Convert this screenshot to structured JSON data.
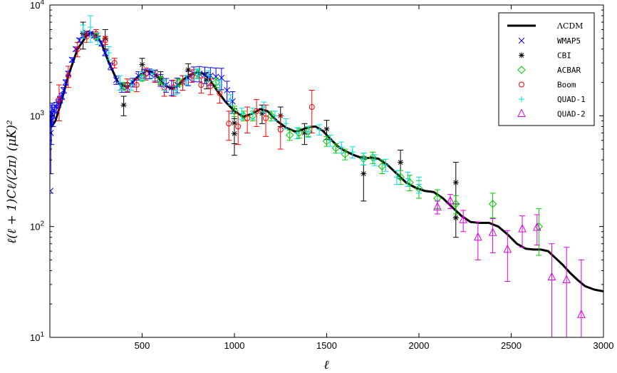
{
  "chart_data": {
    "type": "scatter",
    "title": "",
    "xlabel": "ℓ",
    "ylabel": "ℓ(ℓ + 1)Cℓ/(2π)  (μK)²",
    "xlim": [
      0,
      3000
    ],
    "ylim": [
      10,
      10000
    ],
    "yscale": "log",
    "x_ticks": [
      500,
      1000,
      1500,
      2000,
      2500,
      3000
    ],
    "x_tick_labels": [
      "500",
      "1000",
      "1500",
      "2000",
      "2500",
      "3000"
    ],
    "y_tick_labels": [
      {
        "base": "10",
        "exp": "1",
        "value": 10
      },
      {
        "base": "10",
        "exp": "2",
        "value": 100
      },
      {
        "base": "10",
        "exp": "3",
        "value": 1000
      },
      {
        "base": "10",
        "exp": "4",
        "value": 10000
      }
    ],
    "legend_position": "top-right",
    "model": {
      "name": "ΛCDM",
      "color": "#000000",
      "x": [
        2,
        10,
        30,
        60,
        100,
        150,
        200,
        220,
        250,
        280,
        320,
        370,
        420,
        470,
        520,
        550,
        580,
        620,
        660,
        690,
        720,
        760,
        800,
        830,
        860,
        900,
        950,
        1000,
        1050,
        1100,
        1140,
        1180,
        1230,
        1280,
        1330,
        1360,
        1400,
        1440,
        1480,
        1520,
        1560,
        1600,
        1650,
        1700,
        1740,
        1780,
        1830,
        1880,
        1930,
        1980,
        2030,
        2080,
        2130,
        2180,
        2230,
        2280,
        2330,
        2380,
        2430,
        2480,
        2530,
        2580,
        2620,
        2660,
        2700,
        2740,
        2780,
        2820,
        2860,
        2900,
        2950,
        3000
      ],
      "y": [
        1000,
        800,
        900,
        1300,
        2300,
        4000,
        5300,
        5600,
        5400,
        4500,
        3000,
        2000,
        1800,
        2200,
        2550,
        2500,
        2300,
        1900,
        1750,
        1850,
        2100,
        2350,
        2450,
        2400,
        2200,
        1750,
        1350,
        1100,
        980,
        1050,
        1150,
        1100,
        900,
        780,
        720,
        740,
        790,
        800,
        730,
        620,
        530,
        480,
        440,
        410,
        420,
        410,
        360,
        300,
        250,
        225,
        210,
        205,
        180,
        150,
        125,
        110,
        108,
        108,
        100,
        85,
        70,
        63,
        62,
        62,
        60,
        52,
        45,
        38,
        33,
        29,
        27,
        26
      ]
    },
    "series": [
      {
        "name": "WMAP5",
        "color": "#0000ff",
        "marker": "x",
        "x": [
          3,
          5,
          8,
          12,
          18,
          25,
          35,
          45,
          55,
          65,
          75,
          85,
          100,
          120,
          140,
          160,
          180,
          200,
          220,
          240,
          260,
          280,
          300,
          330,
          360,
          390,
          420,
          450,
          480,
          510,
          540,
          570,
          600,
          630,
          660,
          690,
          720,
          750,
          780,
          810,
          840,
          870,
          900,
          930,
          960,
          990
        ],
        "y": [
          210,
          700,
          900,
          1050,
          1000,
          1100,
          1200,
          1300,
          1400,
          1500,
          1700,
          2000,
          2400,
          3200,
          4000,
          4800,
          5300,
          5600,
          5500,
          5300,
          5000,
          4500,
          3700,
          2800,
          2100,
          1800,
          1800,
          2000,
          2300,
          2400,
          2400,
          2300,
          2100,
          1900,
          1800,
          1900,
          2000,
          2200,
          2400,
          2400,
          2350,
          2300,
          2250,
          2200,
          1700,
          1350
        ],
        "err": [
          0,
          400,
          350,
          250,
          200,
          150,
          120,
          110,
          100,
          100,
          100,
          110,
          120,
          150,
          180,
          200,
          200,
          220,
          220,
          230,
          230,
          230,
          220,
          200,
          180,
          170,
          170,
          180,
          200,
          220,
          240,
          250,
          260,
          270,
          280,
          290,
          300,
          330,
          360,
          380,
          400,
          420,
          450,
          480,
          350,
          300
        ]
      },
      {
        "name": "CBI",
        "color": "#000000",
        "marker": "*",
        "x": [
          180,
          300,
          400,
          500,
          600,
          750,
          850,
          1000,
          1000,
          1150,
          1250,
          1380,
          1500,
          1700,
          1900,
          2200,
          2200
        ],
        "y": [
          5500,
          5000,
          1250,
          2900,
          2200,
          2600,
          2100,
          690,
          860,
          1050,
          1000,
          700,
          760,
          300,
          380,
          250,
          120
        ],
        "err": [
          1500,
          1000,
          250,
          400,
          300,
          350,
          350,
          250,
          300,
          200,
          200,
          150,
          150,
          130,
          110,
          130,
          40
        ]
      },
      {
        "name": "ACBAR",
        "color": "#00cc00",
        "marker": "diamond",
        "x": [
          250,
          400,
          500,
          600,
          700,
          800,
          900,
          1000,
          1050,
          1100,
          1200,
          1300,
          1350,
          1400,
          1500,
          1550,
          1600,
          1700,
          1750,
          1800,
          1900,
          1950,
          2000,
          2100,
          2200,
          2400,
          2650
        ],
        "y": [
          5200,
          1850,
          2200,
          2100,
          2000,
          2400,
          2000,
          1100,
          1000,
          1000,
          1000,
          670,
          700,
          720,
          590,
          510,
          450,
          410,
          420,
          350,
          280,
          250,
          220,
          180,
          160,
          160,
          100
        ],
        "err": [
          300,
          150,
          150,
          150,
          150,
          200,
          200,
          120,
          100,
          100,
          100,
          70,
          70,
          70,
          60,
          50,
          50,
          50,
          50,
          50,
          40,
          40,
          40,
          35,
          30,
          40,
          45
        ]
      },
      {
        "name": "Boom",
        "color": "#ff0000",
        "marker": "o",
        "x": [
          50,
          100,
          150,
          200,
          250,
          300,
          350,
          420,
          470,
          520,
          570,
          620,
          670,
          720,
          770,
          820,
          870,
          920,
          970,
          1020,
          1070,
          1120,
          1170,
          1250,
          1420
        ],
        "y": [
          1400,
          2300,
          4000,
          5200,
          5500,
          4800,
          3000,
          1900,
          1900,
          2400,
          2300,
          1800,
          1800,
          2000,
          2300,
          1900,
          1850,
          1600,
          850,
          800,
          950,
          1100,
          950,
          750,
          1200
        ],
        "err": [
          500,
          500,
          600,
          600,
          500,
          400,
          300,
          250,
          250,
          300,
          300,
          300,
          300,
          300,
          300,
          300,
          300,
          300,
          250,
          250,
          250,
          300,
          300,
          250,
          500
        ]
      },
      {
        "name": "QUAD-1",
        "color": "#00e0e0",
        "marker": "+",
        "x": [
          180,
          220,
          260,
          320,
          380,
          440,
          500,
          560,
          620,
          680,
          740,
          800,
          860,
          920,
          980,
          1040,
          1100,
          1160,
          1220,
          1280,
          1340,
          1400,
          1460,
          1520,
          1580,
          1640,
          1700,
          1760,
          1820,
          1880,
          1940,
          2000
        ],
        "y": [
          5800,
          6300,
          5000,
          3700,
          2000,
          1900,
          2300,
          2400,
          1900,
          1700,
          2100,
          2400,
          2300,
          1900,
          1400,
          1050,
          1050,
          1200,
          1000,
          850,
          700,
          720,
          750,
          600,
          520,
          470,
          410,
          400,
          360,
          280,
          270,
          240
        ],
        "err": [
          800,
          1700,
          600,
          500,
          300,
          200,
          200,
          200,
          200,
          150,
          200,
          250,
          250,
          200,
          150,
          120,
          120,
          130,
          100,
          90,
          80,
          80,
          80,
          70,
          60,
          55,
          50,
          45,
          45,
          40,
          40,
          40
        ]
      },
      {
        "name": "QUAD-2",
        "color": "#e000e0",
        "marker": "triangle",
        "x": [
          2100,
          2170,
          2240,
          2320,
          2400,
          2480,
          2560,
          2640,
          2720,
          2800,
          2880
        ],
        "y": [
          150,
          170,
          115,
          80,
          88,
          62,
          95,
          98,
          35,
          33,
          16
        ],
        "err": [
          20,
          25,
          25,
          30,
          30,
          30,
          30,
          30,
          35,
          32,
          34
        ]
      }
    ]
  }
}
